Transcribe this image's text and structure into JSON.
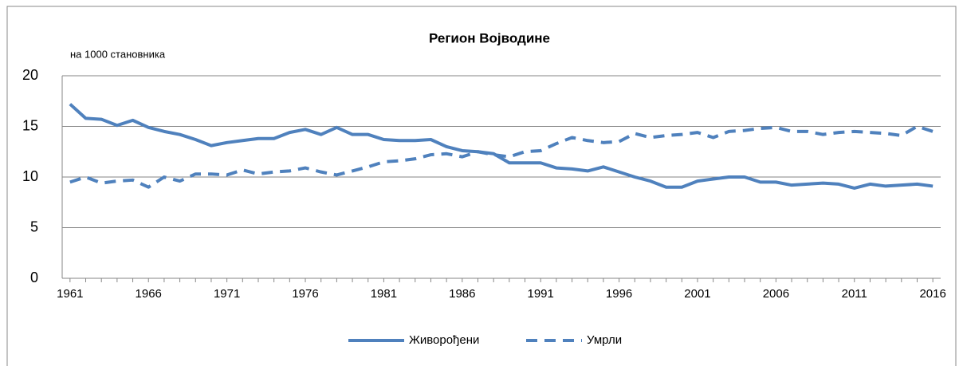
{
  "chart_data": {
    "type": "line",
    "title": "Регион Војводине",
    "y_label": "на 1000 становника",
    "x": [
      1961,
      1962,
      1963,
      1964,
      1965,
      1966,
      1967,
      1968,
      1969,
      1970,
      1971,
      1972,
      1973,
      1974,
      1975,
      1976,
      1977,
      1978,
      1979,
      1980,
      1981,
      1982,
      1983,
      1984,
      1985,
      1986,
      1987,
      1988,
      1989,
      1990,
      1991,
      1992,
      1993,
      1994,
      1995,
      1996,
      1997,
      1998,
      1999,
      2000,
      2001,
      2002,
      2003,
      2004,
      2005,
      2006,
      2007,
      2008,
      2009,
      2010,
      2011,
      2012,
      2013,
      2014,
      2015,
      2016
    ],
    "series": [
      {
        "name": "Живорођени",
        "color": "#4f81bd",
        "dash": false,
        "values": [
          17.2,
          15.8,
          15.7,
          15.1,
          15.6,
          14.9,
          14.5,
          14.2,
          13.7,
          13.1,
          13.4,
          13.6,
          13.8,
          13.8,
          14.4,
          14.7,
          14.2,
          14.9,
          14.2,
          14.2,
          13.7,
          13.6,
          13.6,
          13.7,
          13.0,
          12.6,
          12.5,
          12.3,
          11.4,
          11.4,
          11.4,
          10.9,
          10.8,
          10.6,
          11.0,
          10.5,
          10.0,
          9.6,
          9.0,
          9.0,
          9.6,
          9.8,
          10.0,
          10.0,
          9.5,
          9.5,
          9.2,
          9.3,
          9.4,
          9.3,
          8.9,
          9.3,
          9.1,
          9.2,
          9.3,
          9.1
        ]
      },
      {
        "name": "Умрли",
        "color": "#4f81bd",
        "dash": true,
        "values": [
          9.5,
          10.0,
          9.4,
          9.6,
          9.7,
          9.0,
          10.0,
          9.6,
          10.3,
          10.3,
          10.2,
          10.7,
          10.3,
          10.5,
          10.6,
          10.9,
          10.5,
          10.2,
          10.6,
          11.0,
          11.5,
          11.6,
          11.8,
          12.2,
          12.3,
          12.0,
          12.5,
          12.2,
          12.0,
          12.5,
          12.6,
          13.3,
          13.9,
          13.6,
          13.4,
          13.5,
          14.3,
          13.9,
          14.1,
          14.2,
          14.4,
          13.9,
          14.5,
          14.6,
          14.8,
          14.9,
          14.5,
          14.5,
          14.2,
          14.4,
          14.5,
          14.4,
          14.3,
          14.1,
          15.0,
          14.5
        ]
      }
    ],
    "xlim": [
      1960.5,
      2016.5
    ],
    "xticks": [
      1961,
      1966,
      1971,
      1976,
      1981,
      1986,
      1991,
      1996,
      2001,
      2006,
      2011,
      2016
    ],
    "ylim": [
      0,
      20
    ],
    "yticks": [
      0,
      5,
      10,
      15,
      20
    ],
    "grid": true,
    "legend": "bottom"
  }
}
